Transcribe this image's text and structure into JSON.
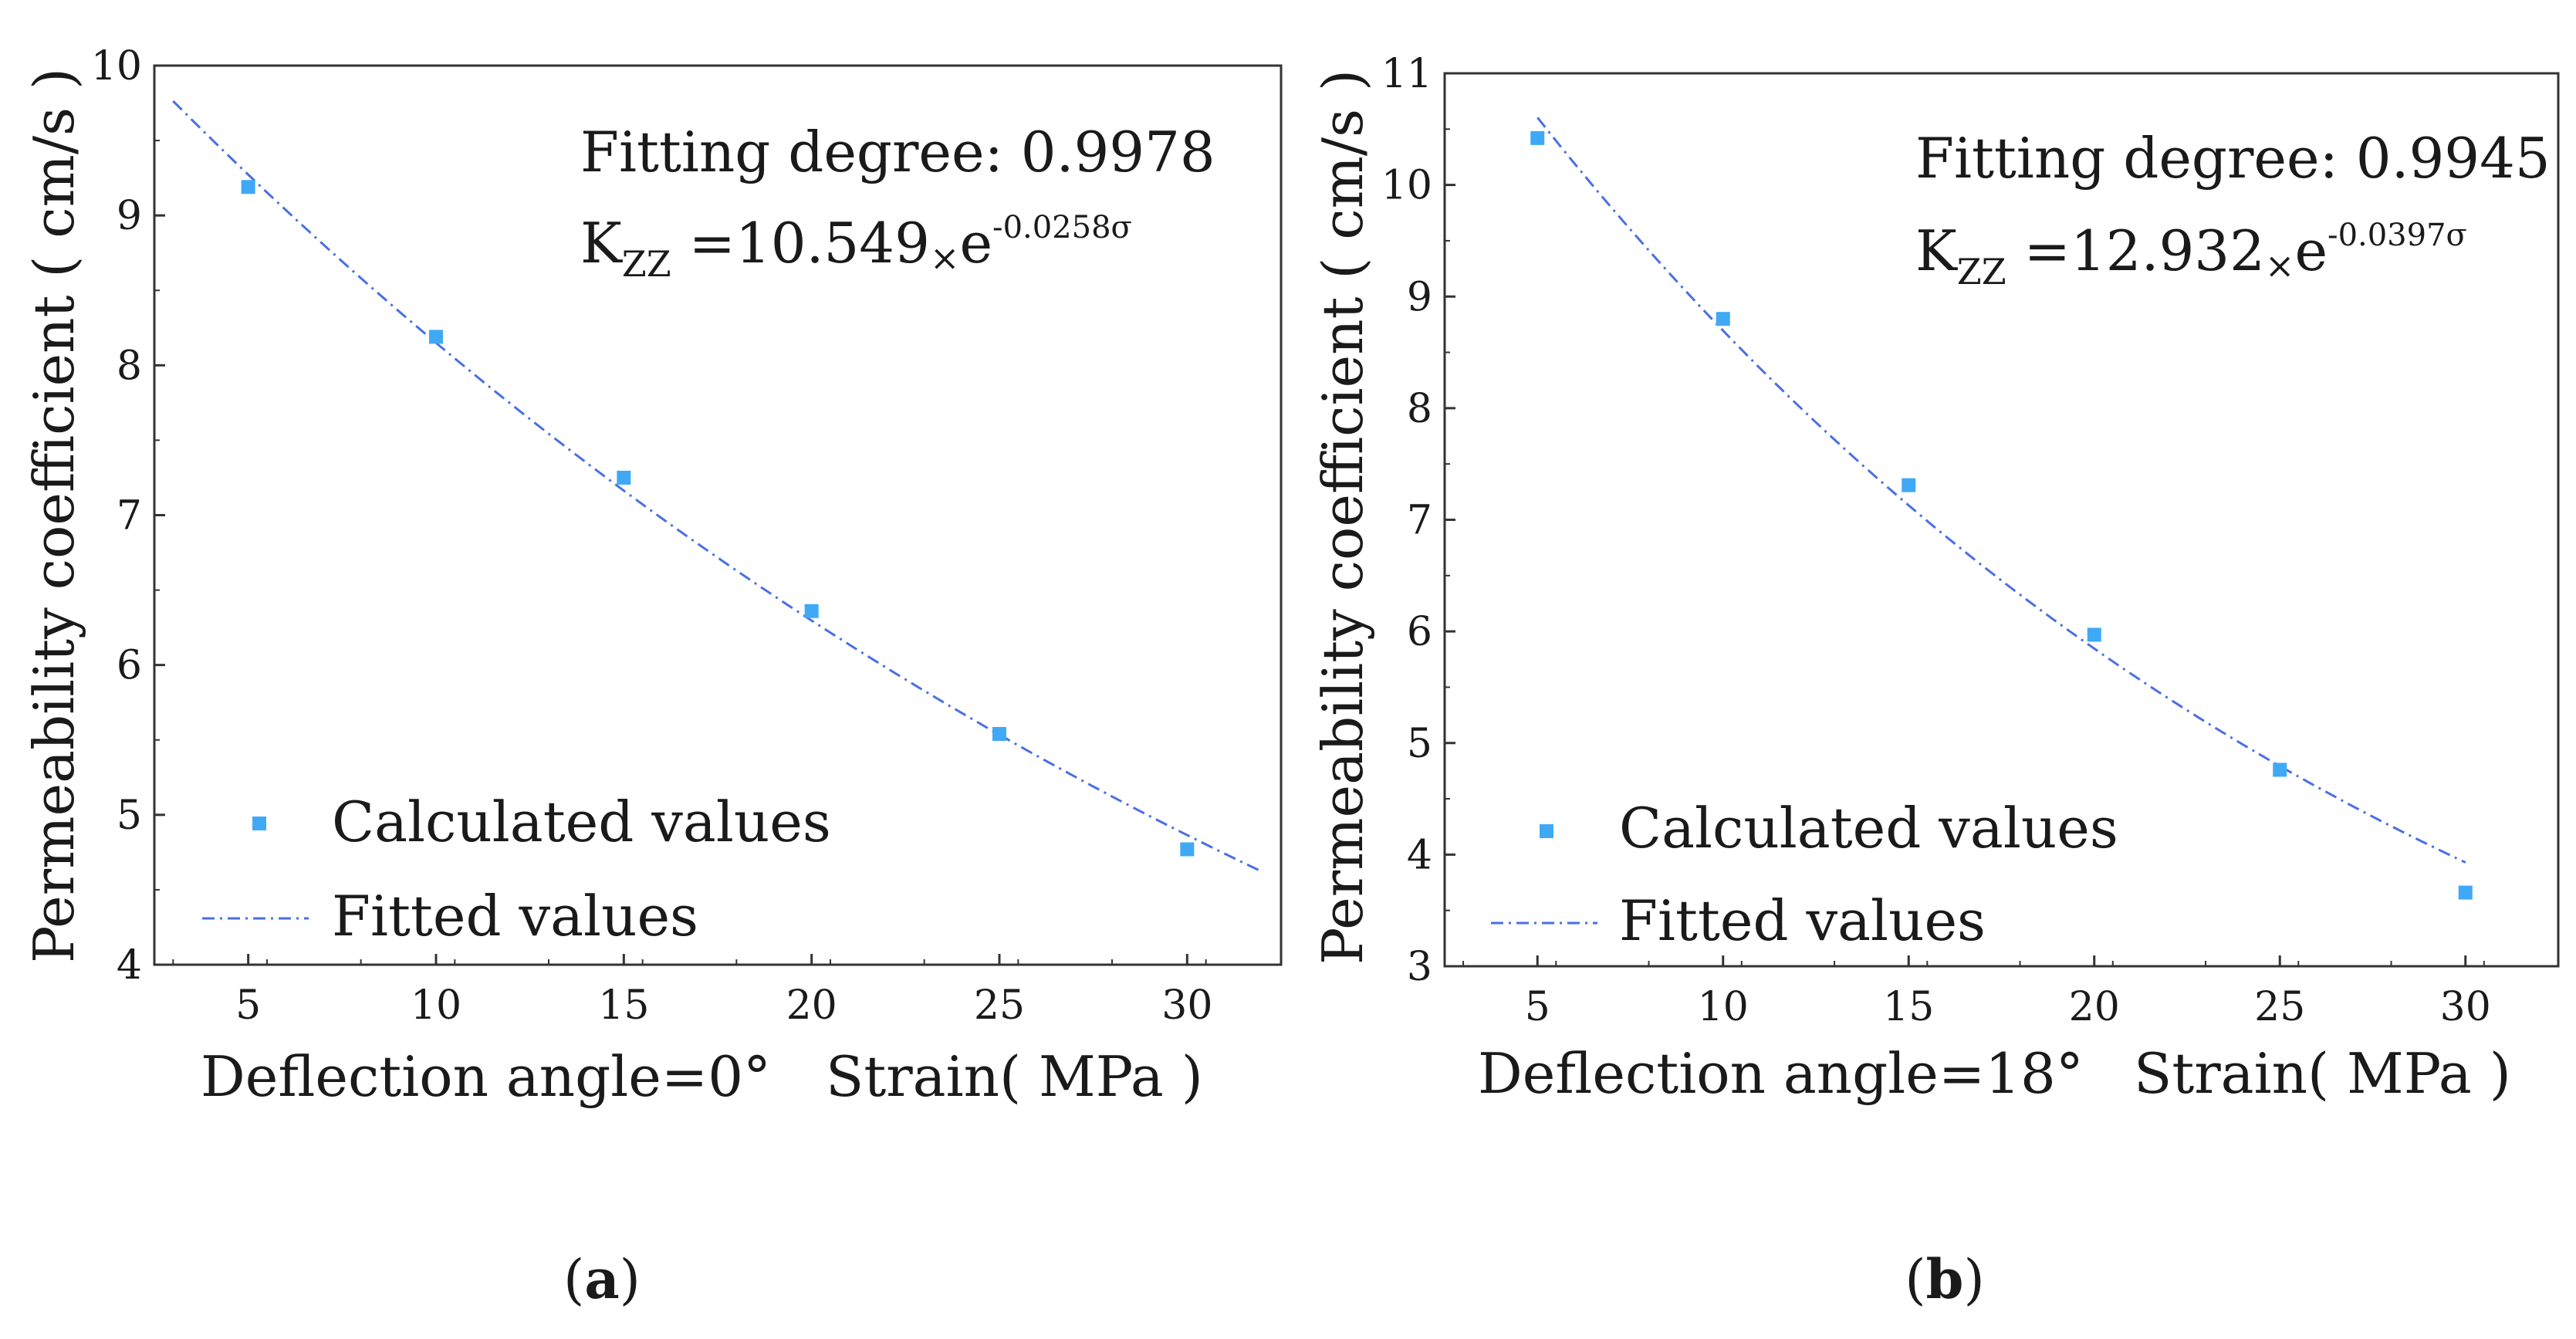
{
  "chart_data": [
    {
      "type": "scatter",
      "panel_label": {
        "open": "(",
        "bold": "a",
        "close": ")"
      },
      "xlabel_left": "Deflection angle=0°",
      "xlabel_right": "Strain( MPa )",
      "ylabel": "Permeability coefficient ( cm/s )",
      "xlim": [
        2.5,
        32.5
      ],
      "ylim": [
        4,
        10
      ],
      "x_ticks": [
        5,
        10,
        15,
        20,
        25,
        30
      ],
      "y_ticks": [
        4,
        5,
        6,
        7,
        8,
        9,
        10
      ],
      "series": [
        {
          "name": "Calculated values",
          "x": [
            5,
            10,
            15,
            20,
            25,
            30
          ],
          "y": [
            9.19,
            8.19,
            7.25,
            6.36,
            5.54,
            4.77
          ],
          "color": "#3fa9f5"
        },
        {
          "name": "Fitted values",
          "fit": {
            "a": 10.549,
            "b": -0.0258
          },
          "x_range": [
            3,
            32
          ],
          "color": "#4a6fe3"
        }
      ],
      "annotation": {
        "fitting_degree": "Fitting degree: 0.9978",
        "k_letter": "K",
        "k_sub": "ZZ",
        "k_eq": " =10.549",
        "times": "×",
        "e": "e",
        "exp": "-0.0258σ"
      },
      "legend": "bottom-left"
    },
    {
      "type": "scatter",
      "panel_label": {
        "open": "(",
        "bold": "b",
        "close": ")"
      },
      "xlabel_left": "Deflection angle=18°",
      "xlabel_right": "Strain( MPa )",
      "ylabel": "Permeability coefficient ( cm/s )",
      "xlim": [
        2.5,
        32.5
      ],
      "ylim": [
        3,
        11
      ],
      "x_ticks": [
        5,
        10,
        15,
        20,
        25,
        30
      ],
      "y_ticks": [
        3,
        4,
        5,
        6,
        7,
        8,
        9,
        10,
        11
      ],
      "series": [
        {
          "name": "Calculated values",
          "x": [
            5,
            10,
            15,
            20,
            25,
            30
          ],
          "y": [
            10.42,
            8.8,
            7.31,
            5.97,
            4.76,
            3.66
          ],
          "color": "#3fa9f5"
        },
        {
          "name": "Fitted values",
          "fit": {
            "a": 12.932,
            "b": -0.0397
          },
          "x_range": [
            5,
            30
          ],
          "color": "#4a6fe3"
        }
      ],
      "annotation": {
        "fitting_degree": "Fitting degree: 0.9945",
        "k_letter": "K",
        "k_sub": "ZZ",
        "k_eq": " =12.932",
        "times": "×",
        "e": "e",
        "exp": "-0.0397σ"
      },
      "legend": "bottom-left"
    }
  ]
}
